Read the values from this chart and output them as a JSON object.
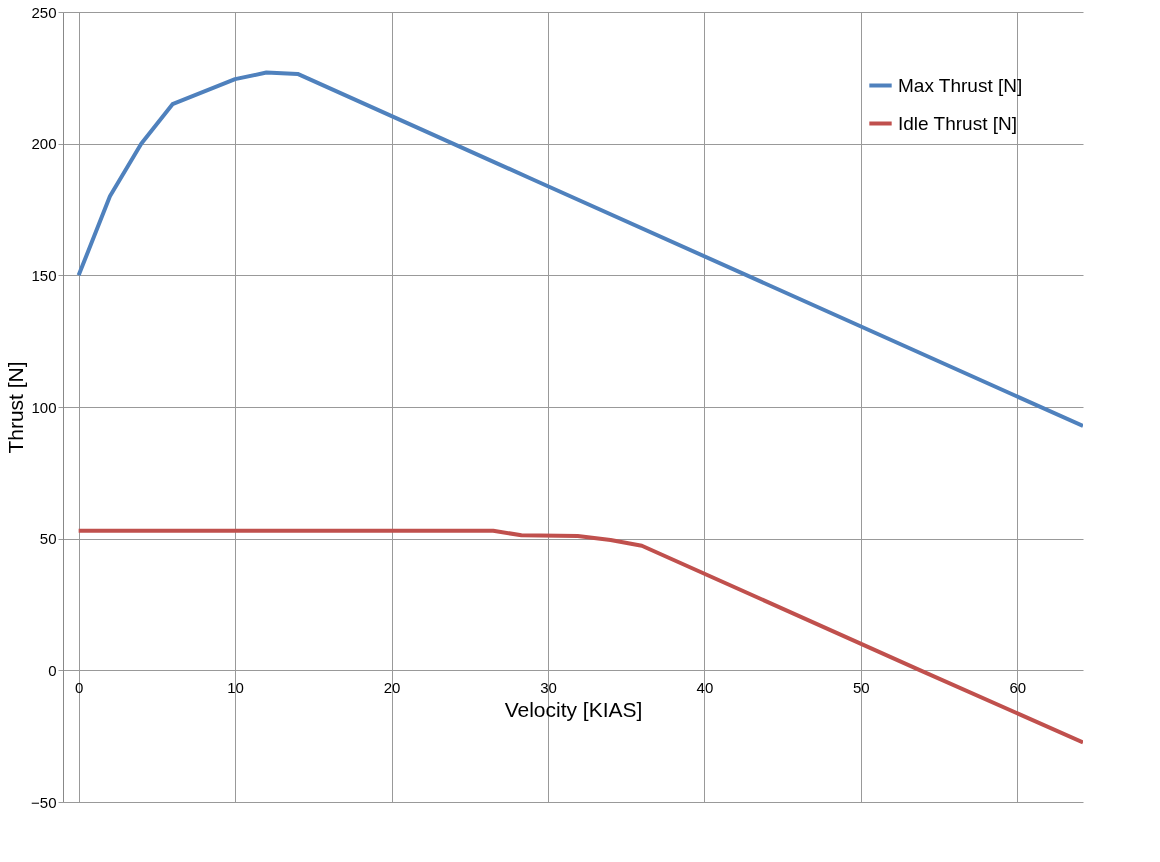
{
  "chart_data": {
    "type": "line",
    "xlabel": "Velocity [KIAS]",
    "ylabel": "Thrust [N]",
    "xlim": [
      -1,
      64.2
    ],
    "xticks": [
      0,
      10,
      20,
      30,
      40,
      50,
      60
    ],
    "ylim": [
      -50,
      250
    ],
    "yticks": [
      -50,
      0,
      50,
      100,
      150,
      200,
      250
    ],
    "grid": true,
    "legend": "top right",
    "marker": "none",
    "line_style": "solid",
    "series": [
      {
        "name": "Max Thrust [N]",
        "color": "#4f81bd",
        "x": [
          0,
          2,
          4,
          6,
          10,
          12,
          14,
          29,
          64.2
        ],
        "values": [
          150,
          180,
          200,
          215,
          224.5,
          227,
          226.5,
          186.5,
          92.8
        ]
      },
      {
        "name": "Idle Thrust [N]",
        "color": "#c0504d",
        "x": [
          0,
          26.5,
          28.3,
          31.9,
          34,
          36,
          53.8,
          64.2
        ],
        "values": [
          53,
          53,
          51.3,
          51,
          49.5,
          47.3,
          0,
          -27.4
        ]
      }
    ]
  }
}
